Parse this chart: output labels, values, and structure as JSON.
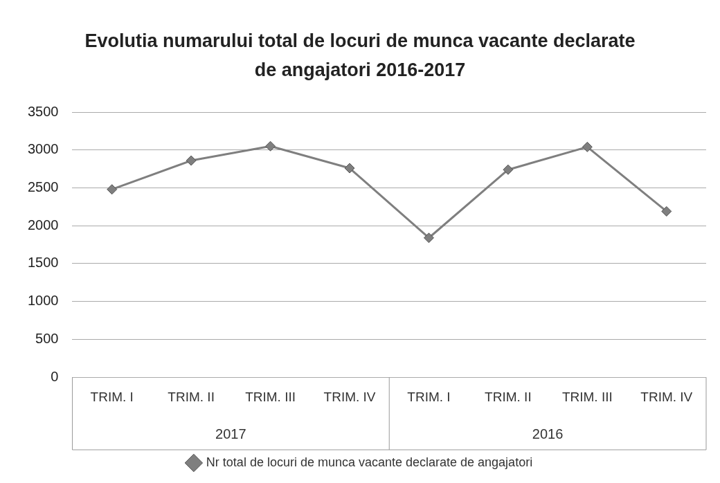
{
  "chart_data": {
    "type": "line",
    "title": "Evolutia numarului total de locuri de munca vacante declarate de angajatori 2016-2017",
    "categories": [
      "TRIM. I",
      "TRIM. II",
      "TRIM. III",
      "TRIM. IV",
      "TRIM. I",
      "TRIM. II",
      "TRIM. III",
      "TRIM. IV"
    ],
    "annotations": [
      "2017",
      "2016"
    ],
    "series": [
      {
        "name": "Nr total de locuri de munca vacante declarate de angajatori",
        "color": "#7f7f7f",
        "values": [
          2480,
          2860,
          3050,
          2760,
          1840,
          2740,
          3040,
          2190
        ]
      }
    ],
    "ylim": [
      0,
      3500
    ],
    "yticks": [
      0,
      500,
      1000,
      1500,
      2000,
      2500,
      3000,
      3500
    ],
    "grid": "y",
    "legend": "bottom",
    "marker": "diamond",
    "line_style": "solid"
  }
}
